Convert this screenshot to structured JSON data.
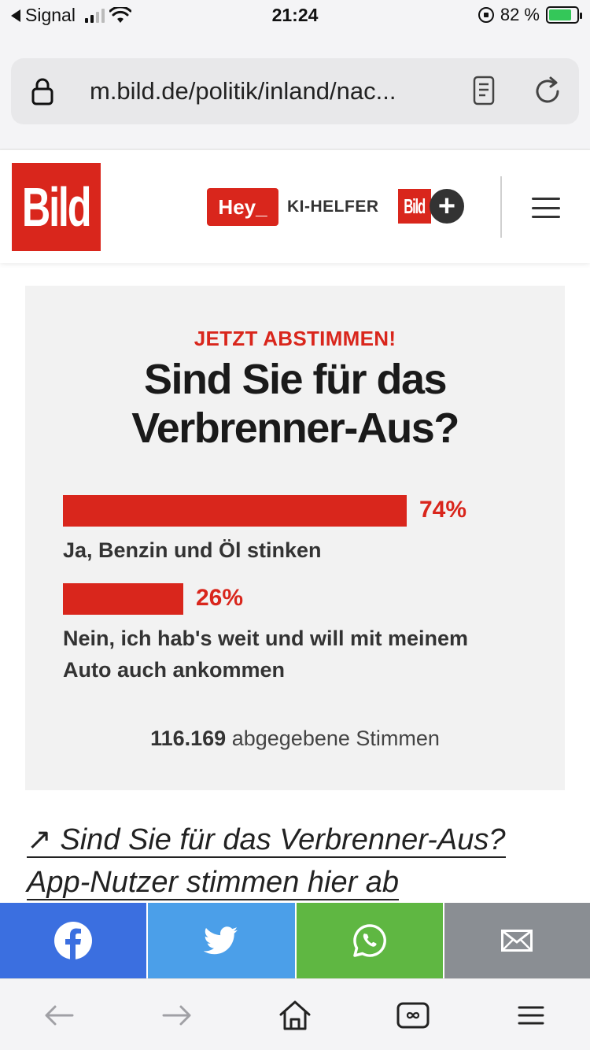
{
  "status_bar": {
    "carrier": "Signal",
    "time": "21:24",
    "battery_percent": "82 %",
    "signal_bars_active": 2,
    "signal_bars_total": 4
  },
  "browser": {
    "url": "m.bild.de/politik/inland/nac..."
  },
  "header": {
    "logo_text": "Bild",
    "hey_button_label": "Hey_",
    "ki_label": "KI-HELFER",
    "bildplus_logo": "Bild",
    "bildplus_plus": "+"
  },
  "poll": {
    "kicker": "JETZT ABSTIMMEN!",
    "question": "Sind Sie für das Verbrenner-Aus?",
    "options": [
      {
        "percent_label": "74%",
        "percent": 74,
        "label": "Ja, Benzin und Öl stinken"
      },
      {
        "percent_label": "26%",
        "percent": 26,
        "label": "Nein, ich hab's weit und will mit meinem Auto auch ankommen"
      }
    ],
    "votes_count": "116.169",
    "votes_label": "abgegebene Stimmen"
  },
  "article_link": {
    "text": "↗ Sind Sie für das Verbrenner-Aus? App-Nutzer stimmen hier ab"
  },
  "share": {
    "colors": {
      "facebook": "#3b6fe0",
      "twitter": "#4b9fe9",
      "whatsapp": "#5fb742",
      "mail": "#8a8e93"
    },
    "icons": [
      "facebook-icon",
      "twitter-icon",
      "whatsapp-icon",
      "mail-icon"
    ]
  },
  "toolbar": {
    "icons": [
      "back-arrow-icon",
      "forward-arrow-icon",
      "home-icon",
      "tabs-icon",
      "menu-icon"
    ]
  },
  "colors": {
    "brand_red": "#d9261c"
  }
}
